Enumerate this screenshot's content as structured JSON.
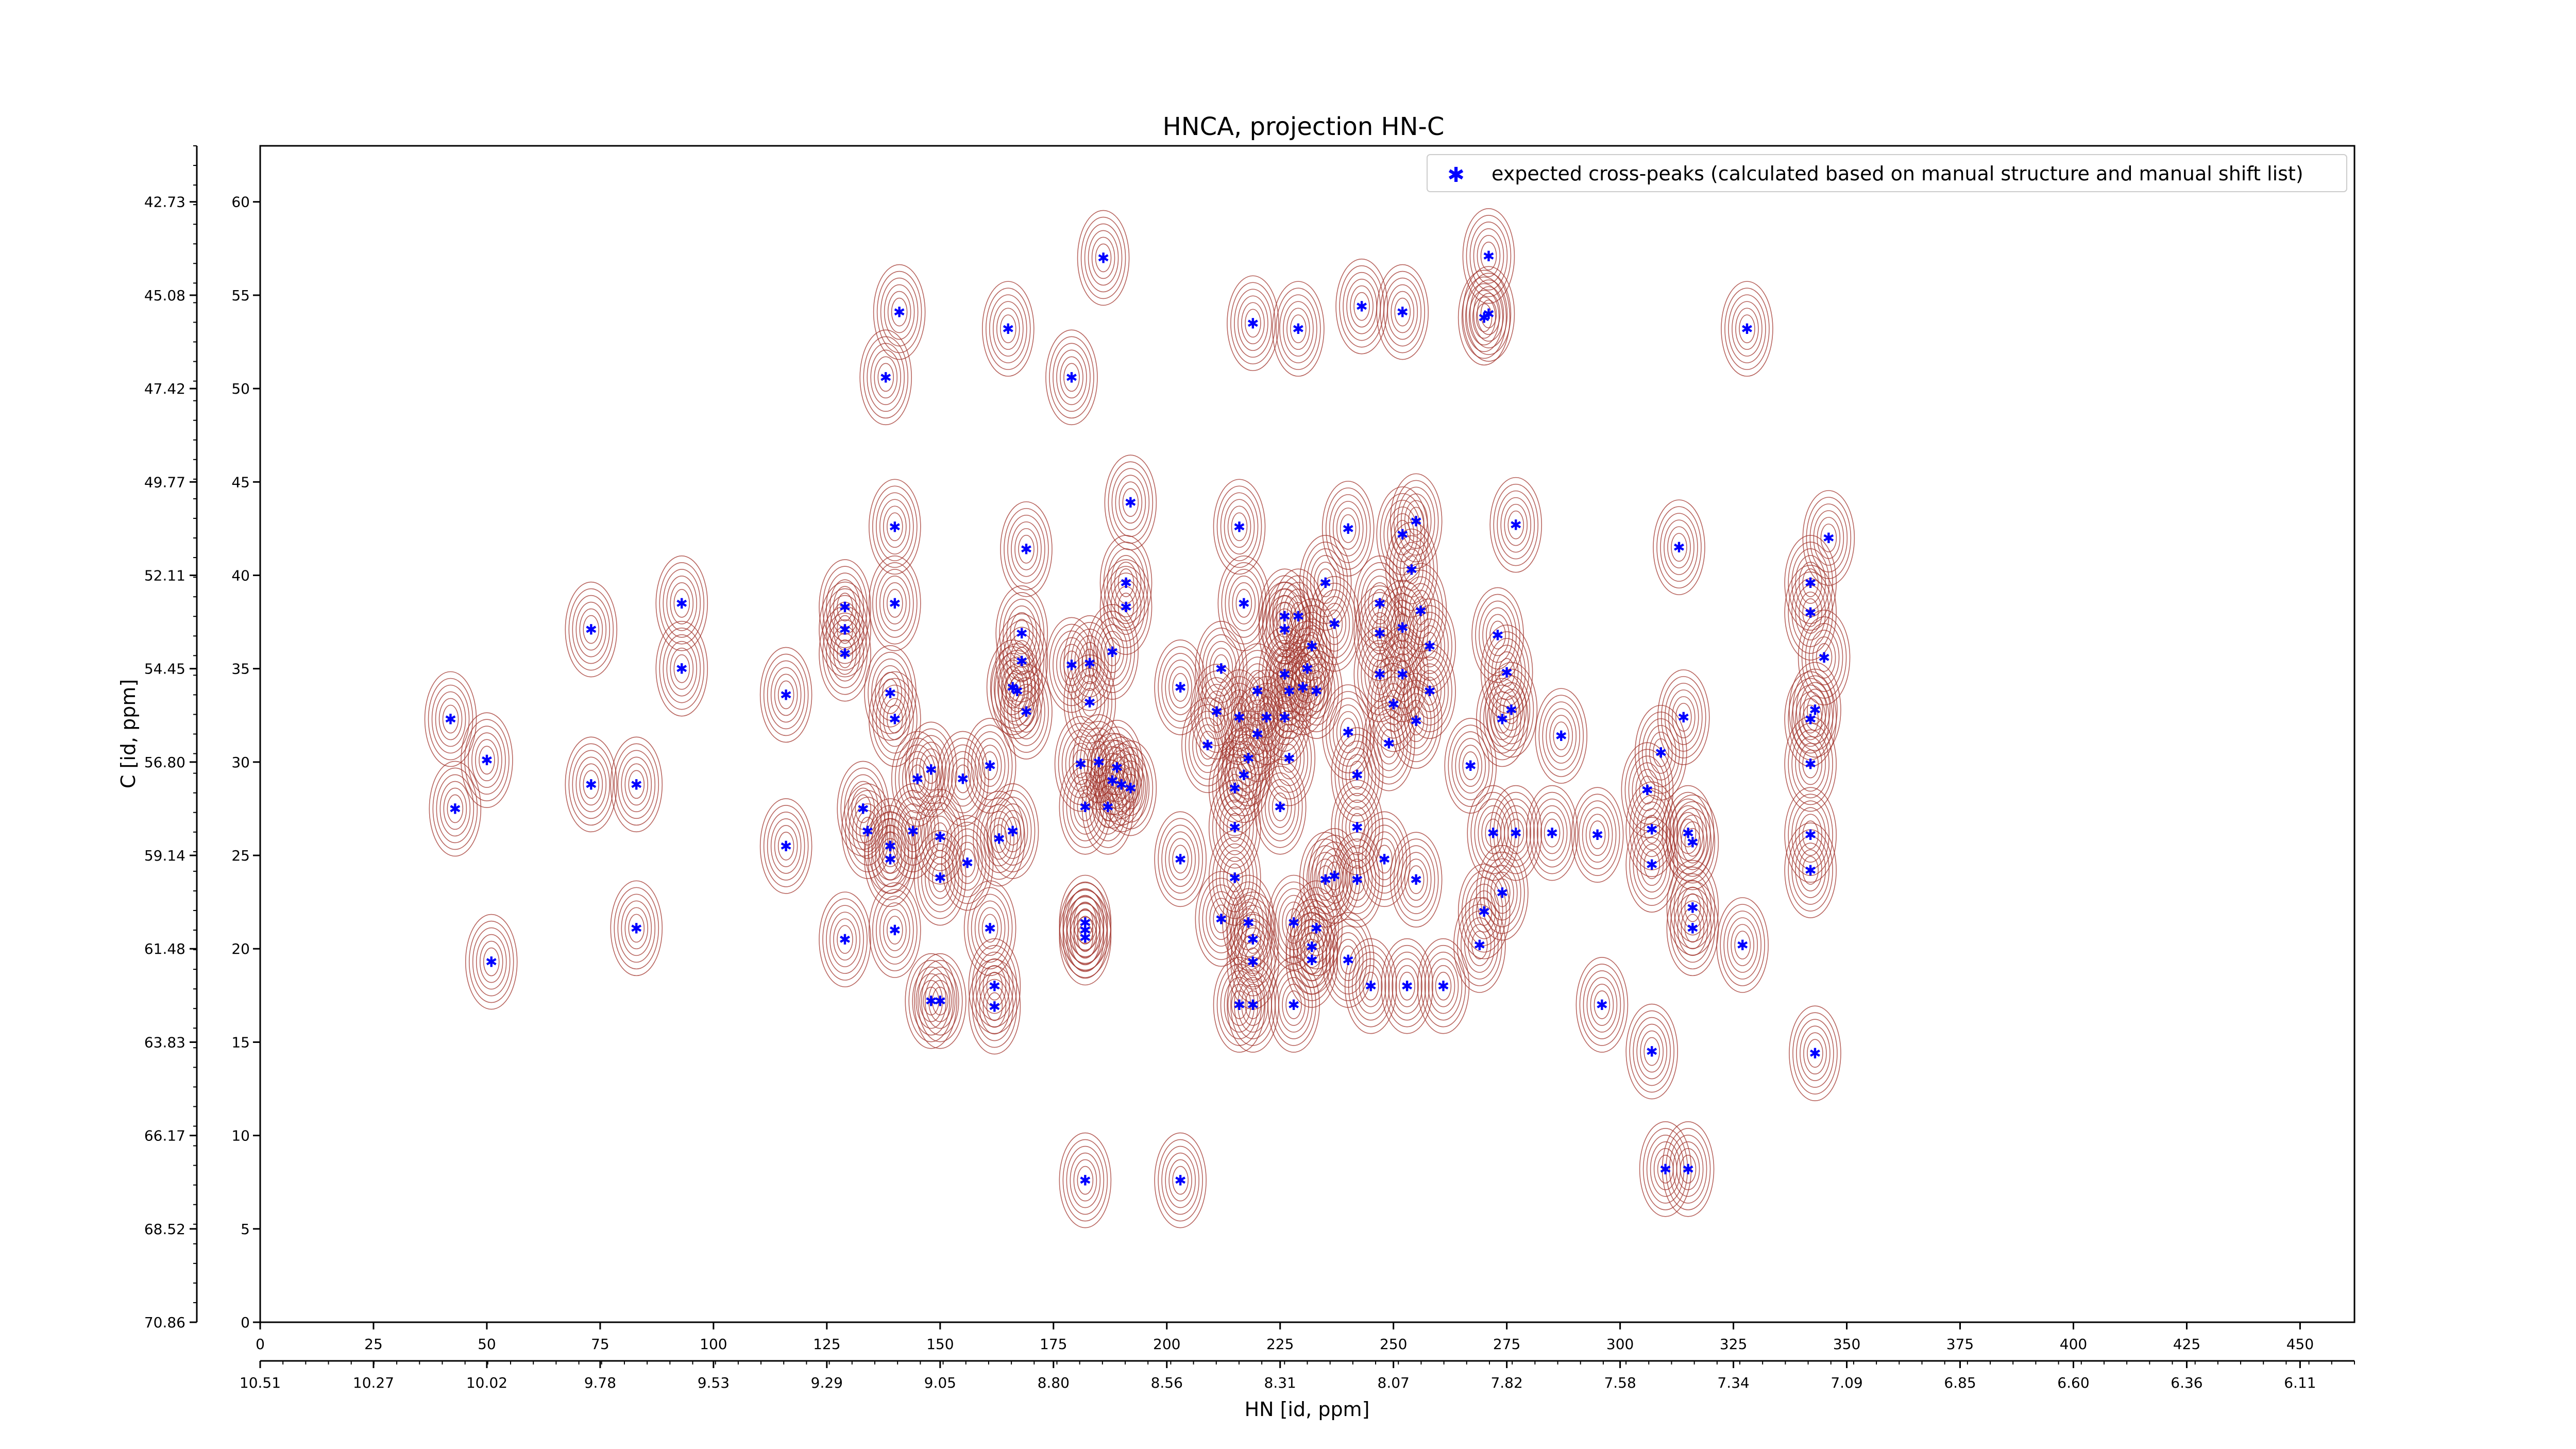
{
  "chart_data": {
    "type": "scatter",
    "title": "HNCA, projection HN-C",
    "xlabel": "HN [id, ppm]",
    "ylabel": "C [id, ppm]",
    "x_index_range": [
      0,
      462
    ],
    "y_index_range": [
      0,
      63
    ],
    "x_index_ticks": [
      "0",
      "25",
      "50",
      "75",
      "100",
      "125",
      "150",
      "175",
      "200",
      "225",
      "250",
      "275",
      "300",
      "325",
      "350",
      "375",
      "400",
      "425",
      "450"
    ],
    "x_ppm_ticks": [
      "10.51",
      "10.27",
      "10.02",
      "9.78",
      "9.53",
      "9.29",
      "9.05",
      "8.80",
      "8.56",
      "8.31",
      "8.07",
      "7.82",
      "7.58",
      "7.34",
      "7.09",
      "6.85",
      "6.60",
      "6.36",
      "6.11"
    ],
    "y_index_ticks": [
      "0",
      "5",
      "10",
      "15",
      "20",
      "25",
      "30",
      "35",
      "40",
      "45",
      "50",
      "55",
      "60"
    ],
    "y_ppm_ticks": [
      "70.86",
      "68.52",
      "66.17",
      "63.83",
      "61.48",
      "59.14",
      "56.80",
      "54.45",
      "52.11",
      "49.77",
      "47.42",
      "45.08",
      "42.73"
    ],
    "legend": {
      "position": "top-right",
      "label": "expected cross-peaks (calculated based on manual structure and manual shift list)"
    },
    "grid": false,
    "colors": {
      "peaks": "#0000ff",
      "positive_contours": "#a0322a",
      "negative_contours": "#2e8b57"
    },
    "series": [
      {
        "name": "expected cross-peaks (calculated based on manual structure and manual shift list)",
        "points": [
          [
            42,
            32.3
          ],
          [
            43,
            27.5
          ],
          [
            50,
            30.1
          ],
          [
            51,
            19.3
          ],
          [
            73,
            37.1
          ],
          [
            73,
            28.8
          ],
          [
            83,
            28.8
          ],
          [
            83,
            21.1
          ],
          [
            93,
            38.5
          ],
          [
            93,
            35
          ],
          [
            116,
            33.6
          ],
          [
            116,
            25.5
          ],
          [
            129,
            38.3
          ],
          [
            129,
            37.1
          ],
          [
            129,
            35.8
          ],
          [
            129,
            20.5
          ],
          [
            133,
            27.5
          ],
          [
            134,
            26.3
          ],
          [
            139,
            25.5
          ],
          [
            139,
            24.8
          ],
          [
            139,
            33.7
          ],
          [
            140,
            32.3
          ],
          [
            140,
            42.6
          ],
          [
            140,
            38.5
          ],
          [
            140,
            21
          ],
          [
            141,
            54.1
          ],
          [
            138,
            50.6
          ],
          [
            144,
            26.3
          ],
          [
            145,
            29.1
          ],
          [
            148,
            17.2
          ],
          [
            148,
            29.6
          ],
          [
            150,
            26
          ],
          [
            150,
            17.2
          ],
          [
            150,
            23.8
          ],
          [
            155,
            29.1
          ],
          [
            156,
            24.6
          ],
          [
            161,
            29.8
          ],
          [
            161,
            21.1
          ],
          [
            162,
            18
          ],
          [
            162,
            16.9
          ],
          [
            163,
            25.9
          ],
          [
            165,
            53.2
          ],
          [
            166,
            26.3
          ],
          [
            166,
            34
          ],
          [
            167,
            33.8
          ],
          [
            168,
            35.4
          ],
          [
            168,
            36.9
          ],
          [
            169,
            32.7
          ],
          [
            169,
            41.4
          ],
          [
            179,
            50.6
          ],
          [
            179,
            35.2
          ],
          [
            183,
            35.3
          ],
          [
            181,
            29.9
          ],
          [
            182,
            21.4
          ],
          [
            182,
            21
          ],
          [
            182,
            20.6
          ],
          [
            182,
            27.6
          ],
          [
            182,
            7.6
          ],
          [
            183,
            33.2
          ],
          [
            185,
            30
          ],
          [
            186,
            57
          ],
          [
            187,
            27.6
          ],
          [
            188,
            35.9
          ],
          [
            188,
            29
          ],
          [
            189,
            29.7
          ],
          [
            190,
            28.8
          ],
          [
            191,
            38.3
          ],
          [
            191,
            39.6
          ],
          [
            192,
            43.9
          ],
          [
            192,
            28.6
          ],
          [
            203,
            34
          ],
          [
            203,
            24.8
          ],
          [
            203,
            7.6
          ],
          [
            209,
            30.9
          ],
          [
            211,
            32.7
          ],
          [
            212,
            35
          ],
          [
            212,
            21.6
          ],
          [
            215,
            23.8
          ],
          [
            215,
            28.6
          ],
          [
            215,
            26.5
          ],
          [
            216,
            42.6
          ],
          [
            216,
            32.4
          ],
          [
            216,
            17
          ],
          [
            217,
            38.5
          ],
          [
            217,
            29.3
          ],
          [
            218,
            30.2
          ],
          [
            219,
            17
          ],
          [
            219,
            19.3
          ],
          [
            219,
            20.5
          ],
          [
            220,
            33.8
          ],
          [
            220,
            31.5
          ],
          [
            218,
            21.4
          ],
          [
            219,
            53.5
          ],
          [
            222,
            32.4
          ],
          [
            225,
            27.6
          ],
          [
            226,
            32.4
          ],
          [
            226,
            37.8
          ],
          [
            226,
            37.1
          ],
          [
            226,
            34.7
          ],
          [
            227,
            33.8
          ],
          [
            227,
            30.2
          ],
          [
            228,
            21.4
          ],
          [
            228,
            17
          ],
          [
            229,
            37.8
          ],
          [
            229,
            53.2
          ],
          [
            230,
            34
          ],
          [
            231,
            35
          ],
          [
            232,
            36.2
          ],
          [
            232,
            20.1
          ],
          [
            232,
            19.4
          ],
          [
            233,
            33.8
          ],
          [
            233,
            21.1
          ],
          [
            235,
            39.6
          ],
          [
            235,
            23.7
          ],
          [
            237,
            23.9
          ],
          [
            237,
            37.4
          ],
          [
            240,
            42.5
          ],
          [
            240,
            31.6
          ],
          [
            240,
            19.4
          ],
          [
            242,
            29.3
          ],
          [
            242,
            26.5
          ],
          [
            242,
            23.7
          ],
          [
            243,
            54.4
          ],
          [
            245,
            18
          ],
          [
            247,
            38.5
          ],
          [
            247,
            36.9
          ],
          [
            247,
            34.7
          ],
          [
            248,
            24.8
          ],
          [
            249,
            31
          ],
          [
            250,
            33.1
          ],
          [
            252,
            54.1
          ],
          [
            252,
            42.2
          ],
          [
            252,
            37.2
          ],
          [
            252,
            34.7
          ],
          [
            253,
            18
          ],
          [
            254,
            40.3
          ],
          [
            255,
            23.7
          ],
          [
            255,
            32.2
          ],
          [
            255,
            42.9
          ],
          [
            256,
            38.1
          ],
          [
            258,
            36.2
          ],
          [
            258,
            33.8
          ],
          [
            261,
            18
          ],
          [
            267,
            29.8
          ],
          [
            269,
            20.2
          ],
          [
            270,
            22
          ],
          [
            270,
            53.8
          ],
          [
            271,
            54
          ],
          [
            271,
            57.1
          ],
          [
            272,
            26.2
          ],
          [
            273,
            36.8
          ],
          [
            274,
            23
          ],
          [
            274,
            32.3
          ],
          [
            275,
            34.8
          ],
          [
            276,
            32.8
          ],
          [
            277,
            42.7
          ],
          [
            277,
            26.2
          ],
          [
            285,
            26.2
          ],
          [
            287,
            31.4
          ],
          [
            295,
            26.1
          ],
          [
            296,
            17
          ],
          [
            306,
            28.5
          ],
          [
            307,
            24.5
          ],
          [
            307,
            26.4
          ],
          [
            307,
            14.5
          ],
          [
            309,
            30.5
          ],
          [
            310,
            8.2
          ],
          [
            313,
            41.5
          ],
          [
            314,
            32.4
          ],
          [
            315,
            26.2
          ],
          [
            315,
            8.2
          ],
          [
            316,
            21.1
          ],
          [
            316,
            22.2
          ],
          [
            316,
            25.7
          ],
          [
            327,
            20.2
          ],
          [
            328,
            53.2
          ],
          [
            342,
            32.3
          ],
          [
            342,
            26.1
          ],
          [
            342,
            29.9
          ],
          [
            342,
            24.2
          ],
          [
            342,
            38
          ],
          [
            342,
            39.6
          ],
          [
            343,
            32.8
          ],
          [
            343,
            14.4
          ],
          [
            345,
            35.6
          ],
          [
            346,
            42
          ]
        ]
      }
    ]
  }
}
